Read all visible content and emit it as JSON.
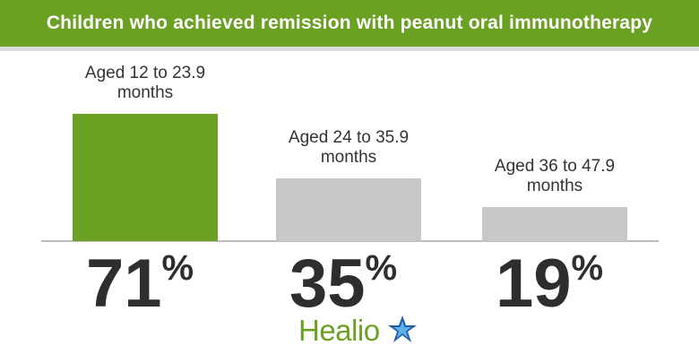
{
  "title": "Children who achieved remission with peanut oral immunotherapy",
  "colors": {
    "header": "#6aa123",
    "highlight_bar": "#6aa123",
    "bar": "#c8c8c8",
    "value_text": "#2e2e2e",
    "label_text": "#333333"
  },
  "chart_data": {
    "type": "bar",
    "categories": [
      [
        "Aged 12 to 23.9",
        "months"
      ],
      [
        "Aged 24 to 35.9",
        "months"
      ],
      [
        "Aged 36 to 47.9",
        "months"
      ]
    ],
    "values": [
      71,
      35,
      19
    ],
    "value_labels": [
      "71",
      "35",
      "19"
    ],
    "value_suffix": "%",
    "highlight_index": 0,
    "ylim": [
      0,
      75
    ],
    "grid": false,
    "legend": "none"
  },
  "brand": {
    "name": "Healio",
    "logo_icon": "star-icon"
  }
}
